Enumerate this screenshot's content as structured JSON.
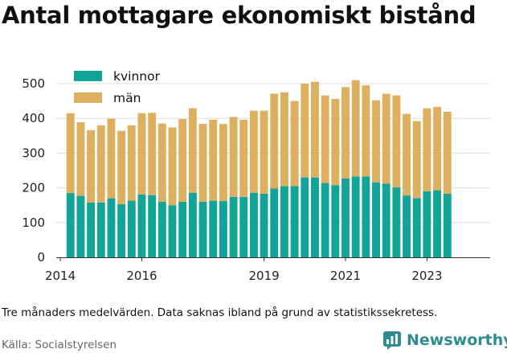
{
  "title": "Antal mottagare ekonomiskt bistånd",
  "caption": "Tre månaders medelvärden. Data saknas ibland på grund av statistikssekretess.",
  "source": "Källa: Socialstyrelsen",
  "brand": {
    "name": "Newsworthy",
    "icon": "newsworthy-chart-logo-icon",
    "color": "#2e8b92"
  },
  "chart_data": {
    "type": "bar",
    "stacked": true,
    "series": [
      {
        "name": "kvinnor",
        "color": "#12a497",
        "values": [
          185,
          177,
          158,
          158,
          170,
          153,
          163,
          181,
          179,
          160,
          150,
          160,
          186,
          160,
          163,
          162,
          174,
          174,
          186,
          183,
          198,
          205,
          205,
          230,
          230,
          214,
          208,
          227,
          233,
          233,
          216,
          212,
          201,
          178,
          170,
          190,
          193,
          183
        ]
      },
      {
        "name": "män",
        "color": "#dcb05f",
        "values": [
          230,
          212,
          208,
          222,
          229,
          211,
          217,
          234,
          237,
          225,
          224,
          238,
          243,
          224,
          233,
          222,
          230,
          222,
          236,
          239,
          273,
          270,
          245,
          270,
          275,
          252,
          248,
          263,
          277,
          262,
          236,
          259,
          265,
          235,
          222,
          239,
          240,
          236
        ]
      }
    ],
    "x_start": 2014.25,
    "x_step": 0.25,
    "xlim": [
      2013.9,
      2024.55
    ],
    "ylim": [
      0,
      520
    ],
    "yticks": [
      0,
      100,
      200,
      300,
      400,
      500
    ],
    "xticks": [
      2014,
      2016,
      2019,
      2021,
      2023
    ],
    "grid": true,
    "legend": "top-left"
  }
}
